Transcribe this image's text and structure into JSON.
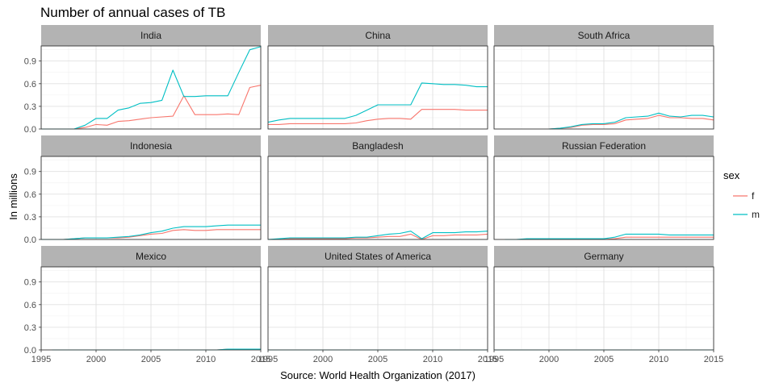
{
  "chart_data": {
    "type": "line",
    "title": "Number of annual cases of TB",
    "xlabel": "Source: World Health Organization (2017)",
    "ylabel": "In millions",
    "xlim": [
      1995,
      2015
    ],
    "ylim": [
      0,
      1.1
    ],
    "x_ticks": [
      "1995",
      "2000",
      "2005",
      "2010",
      "2015"
    ],
    "y_ticks": [
      "0.0",
      "0.3",
      "0.6",
      "0.9"
    ],
    "grid": true,
    "facet_layout": "3x3",
    "legend": {
      "title": "sex",
      "placement": "right",
      "entries": [
        {
          "label": "f",
          "color": "#F8766D"
        },
        {
          "label": "m",
          "color": "#00BFC4"
        }
      ]
    },
    "facets": [
      {
        "name": "India",
        "series": [
          {
            "name": "f",
            "x": [
              1995,
              1996,
              1997,
              1998,
              1999,
              2000,
              2001,
              2002,
              2003,
              2004,
              2005,
              2006,
              2007,
              2008,
              2009,
              2010,
              2011,
              2012,
              2013,
              2014,
              2015
            ],
            "values": [
              0.0,
              0.0,
              0.0,
              0.0,
              0.02,
              0.06,
              0.05,
              0.1,
              0.11,
              0.13,
              0.15,
              0.16,
              0.17,
              0.44,
              0.19,
              0.19,
              0.19,
              0.2,
              0.19,
              0.55,
              0.58
            ]
          },
          {
            "name": "m",
            "x": [
              1995,
              1996,
              1997,
              1998,
              1999,
              2000,
              2001,
              2002,
              2003,
              2004,
              2005,
              2006,
              2007,
              2008,
              2009,
              2010,
              2011,
              2012,
              2013,
              2014,
              2015
            ],
            "values": [
              0.0,
              0.0,
              0.0,
              0.0,
              0.05,
              0.14,
              0.14,
              0.25,
              0.28,
              0.34,
              0.35,
              0.38,
              0.78,
              0.43,
              0.43,
              0.44,
              0.44,
              0.44,
              0.75,
              1.05,
              1.09
            ]
          }
        ]
      },
      {
        "name": "China",
        "series": [
          {
            "name": "f",
            "x": [
              1995,
              1996,
              1997,
              1998,
              1999,
              2000,
              2001,
              2002,
              2003,
              2004,
              2005,
              2006,
              2007,
              2008,
              2009,
              2010,
              2011,
              2012,
              2013,
              2014,
              2015
            ],
            "values": [
              0.06,
              0.06,
              0.07,
              0.07,
              0.07,
              0.07,
              0.07,
              0.07,
              0.08,
              0.11,
              0.13,
              0.14,
              0.14,
              0.13,
              0.26,
              0.26,
              0.26,
              0.26,
              0.25,
              0.25,
              0.25
            ]
          },
          {
            "name": "m",
            "x": [
              1995,
              1996,
              1997,
              1998,
              1999,
              2000,
              2001,
              2002,
              2003,
              2004,
              2005,
              2006,
              2007,
              2008,
              2009,
              2010,
              2011,
              2012,
              2013,
              2014,
              2015
            ],
            "values": [
              0.09,
              0.12,
              0.14,
              0.14,
              0.14,
              0.14,
              0.14,
              0.14,
              0.18,
              0.25,
              0.32,
              0.32,
              0.32,
              0.32,
              0.61,
              0.6,
              0.59,
              0.59,
              0.58,
              0.56,
              0.56
            ]
          }
        ]
      },
      {
        "name": "South Africa",
        "series": [
          {
            "name": "f",
            "x": [
              2000,
              2001,
              2002,
              2003,
              2004,
              2005,
              2006,
              2007,
              2008,
              2009,
              2010,
              2011,
              2012,
              2013,
              2014,
              2015
            ],
            "values": [
              0.0,
              0.01,
              0.02,
              0.05,
              0.06,
              0.06,
              0.07,
              0.12,
              0.13,
              0.14,
              0.18,
              0.15,
              0.15,
              0.14,
              0.14,
              0.12
            ]
          },
          {
            "name": "m",
            "x": [
              2000,
              2001,
              2002,
              2003,
              2004,
              2005,
              2006,
              2007,
              2008,
              2009,
              2010,
              2011,
              2012,
              2013,
              2014,
              2015
            ],
            "values": [
              0.0,
              0.01,
              0.03,
              0.06,
              0.07,
              0.07,
              0.09,
              0.15,
              0.16,
              0.17,
              0.21,
              0.17,
              0.16,
              0.18,
              0.18,
              0.16
            ]
          }
        ]
      },
      {
        "name": "Indonesia",
        "series": [
          {
            "name": "f",
            "x": [
              1995,
              1996,
              1997,
              1998,
              1999,
              2000,
              2001,
              2002,
              2003,
              2004,
              2005,
              2006,
              2007,
              2008,
              2009,
              2010,
              2011,
              2012,
              2013,
              2014,
              2015
            ],
            "values": [
              0.0,
              0.0,
              0.0,
              0.01,
              0.02,
              0.02,
              0.02,
              0.02,
              0.03,
              0.05,
              0.07,
              0.08,
              0.12,
              0.13,
              0.12,
              0.12,
              0.13,
              0.13,
              0.13,
              0.13,
              0.13
            ]
          },
          {
            "name": "m",
            "x": [
              1995,
              1996,
              1997,
              1998,
              1999,
              2000,
              2001,
              2002,
              2003,
              2004,
              2005,
              2006,
              2007,
              2008,
              2009,
              2010,
              2011,
              2012,
              2013,
              2014,
              2015
            ],
            "values": [
              0.0,
              0.0,
              0.0,
              0.01,
              0.02,
              0.02,
              0.02,
              0.03,
              0.04,
              0.06,
              0.09,
              0.11,
              0.15,
              0.17,
              0.17,
              0.17,
              0.18,
              0.19,
              0.19,
              0.19,
              0.19
            ]
          }
        ]
      },
      {
        "name": "Bangladesh",
        "series": [
          {
            "name": "f",
            "x": [
              1995,
              1996,
              1997,
              1998,
              1999,
              2000,
              2001,
              2002,
              2003,
              2004,
              2005,
              2006,
              2007,
              2008,
              2009,
              2010,
              2011,
              2012,
              2013,
              2014,
              2015
            ],
            "values": [
              0.0,
              0.0,
              0.01,
              0.01,
              0.01,
              0.01,
              0.01,
              0.01,
              0.02,
              0.02,
              0.03,
              0.04,
              0.04,
              0.07,
              0.0,
              0.05,
              0.05,
              0.06,
              0.06,
              0.06,
              0.07
            ]
          },
          {
            "name": "m",
            "x": [
              1995,
              1996,
              1997,
              1998,
              1999,
              2000,
              2001,
              2002,
              2003,
              2004,
              2005,
              2006,
              2007,
              2008,
              2009,
              2010,
              2011,
              2012,
              2013,
              2014,
              2015
            ],
            "values": [
              0.0,
              0.01,
              0.02,
              0.02,
              0.02,
              0.02,
              0.02,
              0.02,
              0.03,
              0.03,
              0.05,
              0.07,
              0.08,
              0.11,
              0.01,
              0.09,
              0.09,
              0.09,
              0.1,
              0.1,
              0.11
            ]
          }
        ]
      },
      {
        "name": "Russian Federation",
        "series": [
          {
            "name": "f",
            "x": [
              1996,
              1997,
              1998,
              1999,
              2000,
              2001,
              2002,
              2003,
              2004,
              2005,
              2006,
              2007,
              2008,
              2009,
              2010,
              2011,
              2012,
              2013,
              2014,
              2015
            ],
            "values": [
              0.0,
              0.0,
              0.0,
              0.0,
              0.0,
              0.0,
              0.0,
              0.0,
              0.0,
              0.0,
              0.01,
              0.03,
              0.03,
              0.03,
              0.03,
              0.03,
              0.03,
              0.03,
              0.03,
              0.03
            ]
          },
          {
            "name": "m",
            "x": [
              1996,
              1997,
              1998,
              1999,
              2000,
              2001,
              2002,
              2003,
              2004,
              2005,
              2006,
              2007,
              2008,
              2009,
              2010,
              2011,
              2012,
              2013,
              2014,
              2015
            ],
            "values": [
              0.0,
              0.0,
              0.01,
              0.01,
              0.01,
              0.01,
              0.01,
              0.01,
              0.01,
              0.01,
              0.03,
              0.07,
              0.07,
              0.07,
              0.07,
              0.06,
              0.06,
              0.06,
              0.06,
              0.06
            ]
          }
        ]
      },
      {
        "name": "Mexico",
        "series": [
          {
            "name": "f",
            "x": [
              1996,
              2000,
              2005,
              2010,
              2011,
              2012,
              2013,
              2014,
              2015
            ],
            "values": [
              0.0,
              0.0,
              0.0,
              0.0,
              0.0,
              0.01,
              0.01,
              0.01,
              0.01
            ]
          },
          {
            "name": "m",
            "x": [
              1996,
              2000,
              2005,
              2010,
              2011,
              2012,
              2013,
              2014,
              2015
            ],
            "values": [
              0.0,
              0.0,
              0.0,
              0.0,
              0.0,
              0.01,
              0.01,
              0.01,
              0.01
            ]
          }
        ]
      },
      {
        "name": "United States of America",
        "series": [
          {
            "name": "f",
            "x": [
              1995,
              2000,
              2005,
              2010,
              2015
            ],
            "values": [
              0.0,
              0.0,
              0.0,
              0.0,
              0.0
            ]
          },
          {
            "name": "m",
            "x": [
              1995,
              2000,
              2005,
              2010,
              2015
            ],
            "values": [
              0.0,
              0.0,
              0.0,
              0.0,
              0.0
            ]
          }
        ]
      },
      {
        "name": "Germany",
        "series": [
          {
            "name": "f",
            "x": [
              1995,
              2000,
              2001,
              2002,
              2003,
              2004,
              2005,
              2010,
              2015
            ],
            "values": [
              0.0,
              0.0,
              0.0,
              0.0,
              0.0,
              0.0,
              0.0,
              0.0,
              0.0
            ]
          },
          {
            "name": "m",
            "x": [
              1995,
              2000,
              2001,
              2002,
              2003,
              2004,
              2005,
              2010,
              2015
            ],
            "values": [
              0.0,
              0.0,
              0.0,
              0.0,
              0.0,
              0.0,
              0.0,
              0.0,
              0.0
            ]
          }
        ]
      }
    ]
  }
}
